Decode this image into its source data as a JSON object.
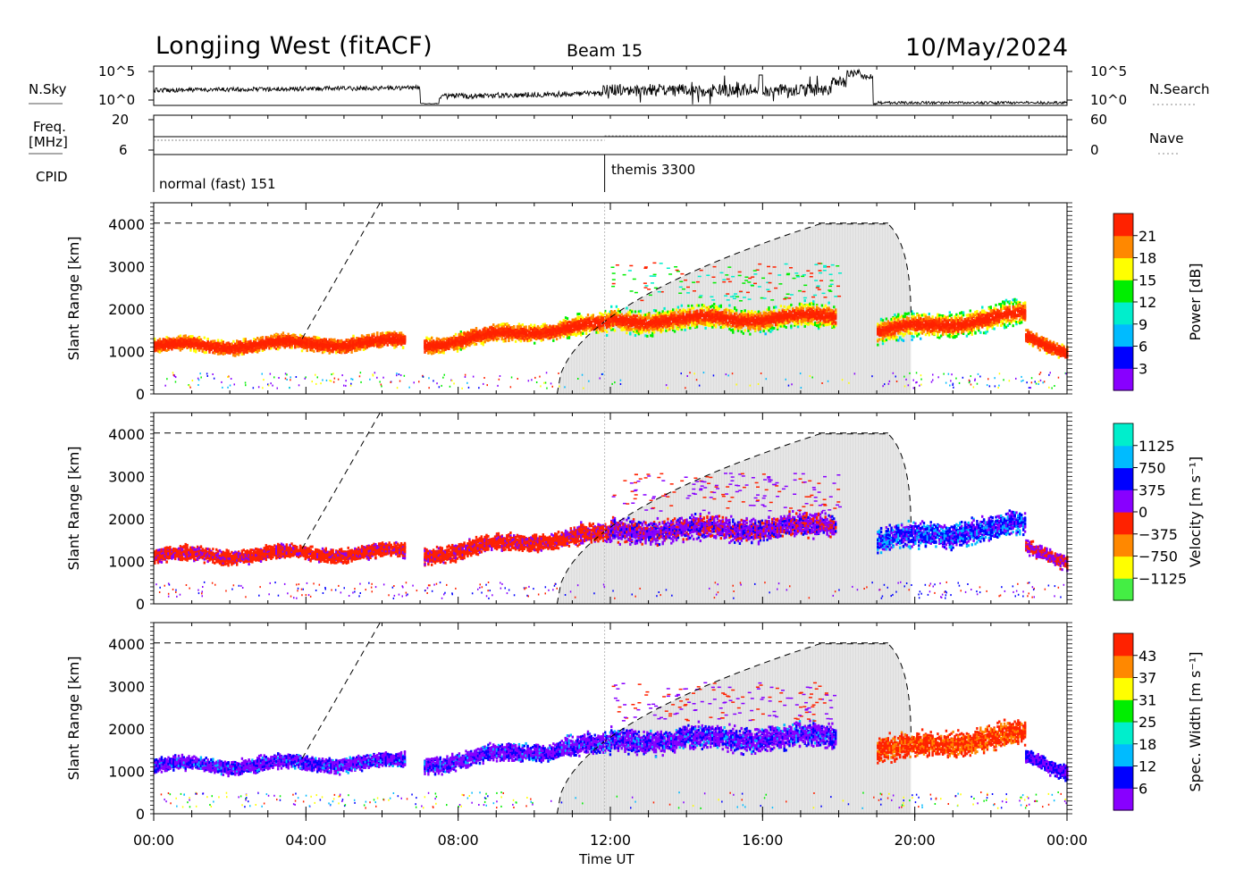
{
  "header": {
    "station": "Longjing West (fitACF)",
    "beam": "Beam 15",
    "date": "10/May/2024"
  },
  "status_panels": {
    "nsky_label": "N.Sky",
    "nsearch_label": "N.Search",
    "noise_ticks_left": [
      "10^5",
      "10^0"
    ],
    "noise_ticks_right": [
      "10^5",
      "10^0"
    ],
    "freq_label": [
      "Freq.",
      "[MHz]"
    ],
    "freq_ticks": [
      "20",
      "6"
    ],
    "nave_label": "Nave",
    "nave_ticks": [
      "60",
      "0"
    ],
    "cpid_label": "CPID",
    "cpid_segments": [
      {
        "label": "normal (fast) 151",
        "start": "00:00"
      },
      {
        "label": "themis 3300",
        "start": "11:50"
      }
    ]
  },
  "chart_data": [
    {
      "type": "heatmap",
      "title": "",
      "xlabel": "Time UT",
      "ylabel": "Slant Range [km]",
      "x_ticks": [
        "00:00",
        "04:00",
        "08:00",
        "12:00",
        "16:00",
        "20:00",
        "00:00"
      ],
      "xlim_hours": [
        0,
        24
      ],
      "ylim_km": [
        0,
        4500
      ],
      "y_ticks": [
        0,
        1000,
        2000,
        3000,
        4000
      ],
      "colorbar": {
        "label": "Power [dB]",
        "ticks": [
          "21",
          "18",
          "15",
          "12",
          "9",
          "6",
          "3"
        ],
        "range": [
          0,
          24
        ],
        "colors": [
          "#8800ff",
          "#0000ff",
          "#00bbff",
          "#00eecc",
          "#00ee00",
          "#ffff00",
          "#ff8800",
          "#ff2200"
        ]
      }
    },
    {
      "type": "heatmap",
      "title": "",
      "xlabel": "Time UT",
      "ylabel": "Slant Range [km]",
      "x_ticks": [
        "00:00",
        "04:00",
        "08:00",
        "12:00",
        "16:00",
        "20:00",
        "00:00"
      ],
      "xlim_hours": [
        0,
        24
      ],
      "ylim_km": [
        0,
        4500
      ],
      "y_ticks": [
        0,
        1000,
        2000,
        3000,
        4000
      ],
      "colorbar": {
        "label": "Velocity [m s⁻¹]",
        "ticks": [
          "1125",
          "750",
          "375",
          "0",
          "−375",
          "−750",
          "−1125"
        ],
        "range": [
          -1500,
          1500
        ],
        "colors": [
          "#44ee44",
          "#ffff00",
          "#ff8800",
          "#ff2200",
          "#8800ff",
          "#0000ff",
          "#00bbff",
          "#00eecc"
        ]
      }
    },
    {
      "type": "heatmap",
      "title": "",
      "xlabel": "Time UT",
      "ylabel": "Slant Range [km]",
      "x_ticks": [
        "00:00",
        "04:00",
        "08:00",
        "12:00",
        "16:00",
        "20:00",
        "00:00"
      ],
      "xlim_hours": [
        0,
        24
      ],
      "ylim_km": [
        0,
        4500
      ],
      "y_ticks": [
        0,
        1000,
        2000,
        3000,
        4000
      ],
      "colorbar": {
        "label": "Spec. Width [m s⁻¹]",
        "ticks": [
          "43",
          "37",
          "31",
          "25",
          "18",
          "12",
          "6"
        ],
        "range": [
          0,
          50
        ],
        "colors": [
          "#8800ff",
          "#0000ff",
          "#00bbff",
          "#00eecc",
          "#00ee00",
          "#ffff00",
          "#ff8800",
          "#ff2200"
        ]
      }
    }
  ]
}
